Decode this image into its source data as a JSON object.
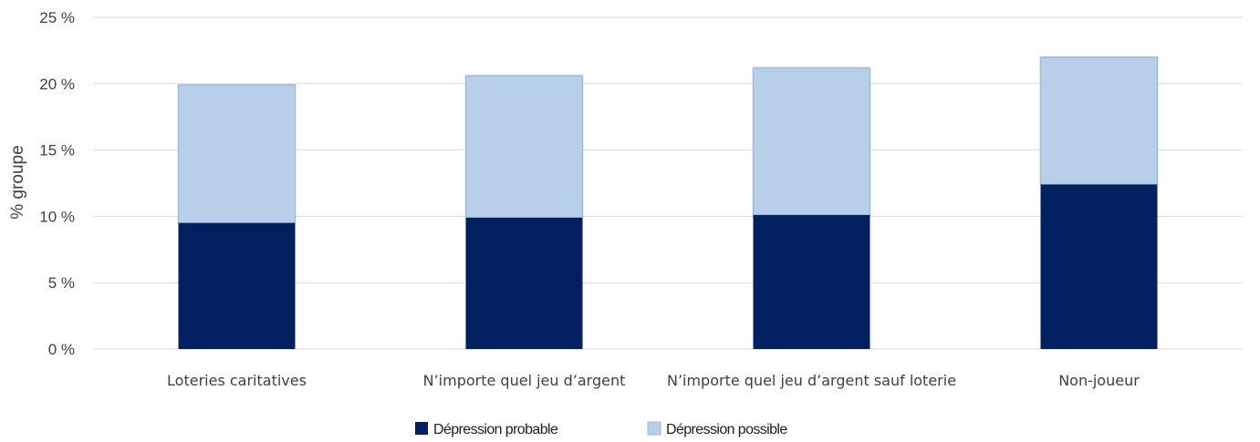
{
  "chart_data": {
    "type": "bar",
    "stacked": true,
    "categories": [
      "Loteries caritatives",
      "N’importe quel jeu d’argent",
      "N’importe quel jeu d’argent sauf loterie",
      "Non-joueur"
    ],
    "series": [
      {
        "name": "Dépression probable",
        "values": [
          9.5,
          9.9,
          10.1,
          12.4
        ],
        "color": "#002060"
      },
      {
        "name": "Dépression possible",
        "values": [
          10.4,
          10.7,
          11.1,
          9.6
        ],
        "color": "#b8cfea"
      }
    ],
    "ylabel": "% groupe",
    "ylim": [
      0,
      25
    ],
    "yticks": [
      0,
      5,
      10,
      15,
      20,
      25
    ],
    "ytick_labels": [
      "0 %",
      "5 %",
      "10 %",
      "15 %",
      "20 %",
      "25 %"
    ],
    "grid": true,
    "legend_position": "bottom-center",
    "possible_border_color": "#9dbada"
  }
}
